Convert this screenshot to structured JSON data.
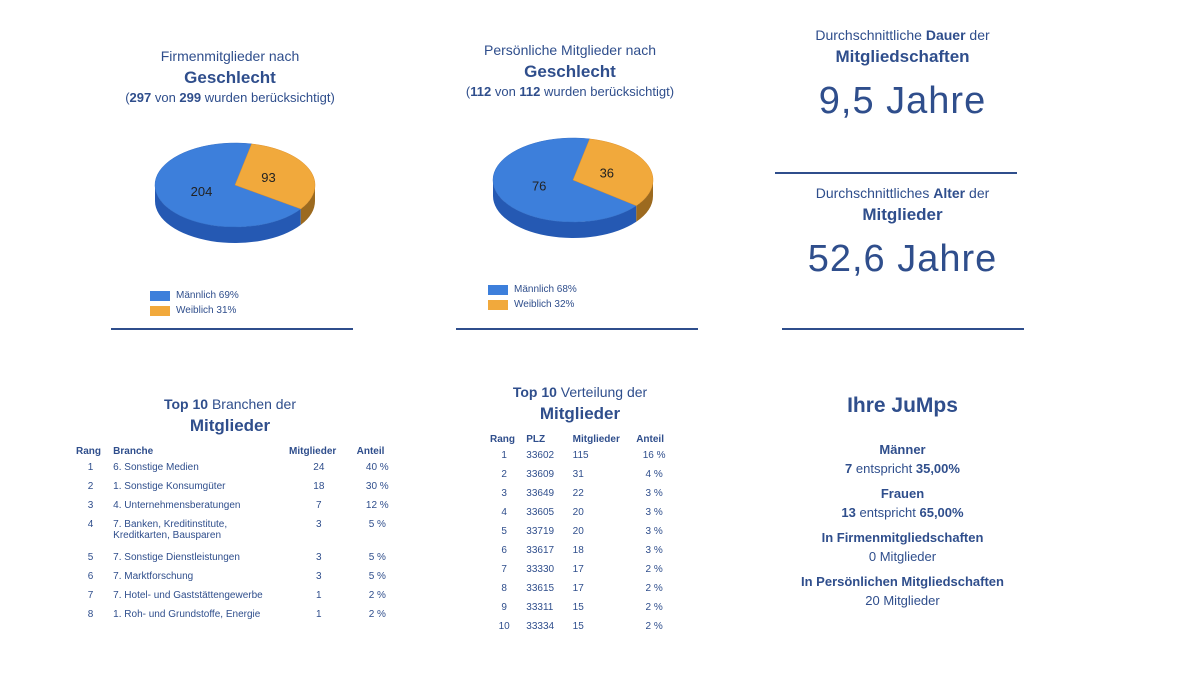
{
  "colors": {
    "text": "#2f4e8c",
    "male": "#3d7fdb",
    "female": "#f1a93c"
  },
  "firm_gender": {
    "title_line1": "Firmenmitglieder nach",
    "title_line2": "Geschlecht",
    "sub_count": "297",
    "sub_mid": " von ",
    "sub_total": "299",
    "sub_suffix": " wurden berücksichtigt)",
    "sub_prefix": "(",
    "legend": [
      {
        "label": "Männlich 69%"
      },
      {
        "label": "Weiblich 31%"
      }
    ]
  },
  "personal_gender": {
    "title_line1": "Persönliche Mitglieder nach",
    "title_line2": "Geschlecht",
    "sub_prefix": "(",
    "sub_count": "112",
    "sub_mid": " von ",
    "sub_total": "112",
    "sub_suffix": " wurden berücksichtigt)",
    "legend": [
      {
        "label": "Männlich 68%"
      },
      {
        "label": "Weiblich 32%"
      }
    ]
  },
  "chart_data": [
    {
      "type": "pie",
      "title": "Firmenmitglieder nach Geschlecht",
      "categories": [
        "Männlich",
        "Weiblich"
      ],
      "values": [
        204,
        93
      ],
      "data_labels": [
        "204",
        "93"
      ]
    },
    {
      "type": "pie",
      "title": "Persönliche Mitglieder nach Geschlecht",
      "categories": [
        "Männlich",
        "Weiblich"
      ],
      "values": [
        76,
        36
      ],
      "data_labels": [
        "76",
        "36"
      ]
    }
  ],
  "duration": {
    "prefix": "Durchschnittliche ",
    "bold": "Dauer",
    "suffix": " der",
    "line2": "Mitgliedschaften",
    "value": "9,5 Jahre"
  },
  "age": {
    "prefix": "Durchschnittliches ",
    "bold": "Alter",
    "suffix": " der",
    "line2": "Mitglieder",
    "value": "52,6 Jahre"
  },
  "branches": {
    "title_bold": "Top 10",
    "title_rest": " Branchen der",
    "title_line2": "Mitglieder",
    "headers": [
      "Rang",
      "Branche",
      "Mitglieder",
      "Anteil"
    ],
    "rows": [
      {
        "rank": "1",
        "name": "6. Sonstige Medien",
        "members": "24",
        "share": "40 %"
      },
      {
        "rank": "2",
        "name": "1. Sonstige Konsumgüter",
        "members": "18",
        "share": "30 %"
      },
      {
        "rank": "3",
        "name": "4. Unternehmensberatungen",
        "members": "7",
        "share": "12 %"
      },
      {
        "rank": "4",
        "name": "7. Banken, Kreditinstitute,",
        "name2": "Kreditkarten, Bausparen",
        "members": "3",
        "share": "5 %"
      },
      {
        "rank": "5",
        "name": "7. Sonstige Dienstleistungen",
        "members": "3",
        "share": "5 %"
      },
      {
        "rank": "6",
        "name": "7. Marktforschung",
        "members": "3",
        "share": "5 %"
      },
      {
        "rank": "7",
        "name": "7. Hotel- und Gaststättengewerbe",
        "members": "1",
        "share": "2 %"
      },
      {
        "rank": "8",
        "name": "1. Roh- und Grundstoffe, Energie",
        "members": "1",
        "share": "2 %"
      }
    ]
  },
  "distribution": {
    "title_bold": "Top 10",
    "title_rest": " Verteilung der",
    "title_line2": "Mitglieder",
    "headers": [
      "Rang",
      "PLZ",
      "Mitglieder",
      "Anteil"
    ],
    "rows": [
      {
        "rank": "1",
        "plz": "33602",
        "members": "115",
        "share": "16 %"
      },
      {
        "rank": "2",
        "plz": "33609",
        "members": "31",
        "share": "4 %"
      },
      {
        "rank": "3",
        "plz": "33649",
        "members": "22",
        "share": "3 %"
      },
      {
        "rank": "4",
        "plz": "33605",
        "members": "20",
        "share": "3 %"
      },
      {
        "rank": "5",
        "plz": "33719",
        "members": "20",
        "share": "3 %"
      },
      {
        "rank": "6",
        "plz": "33617",
        "members": "18",
        "share": "3 %"
      },
      {
        "rank": "7",
        "plz": "33330",
        "members": "17",
        "share": "2 %"
      },
      {
        "rank": "8",
        "plz": "33615",
        "members": "17",
        "share": "2 %"
      },
      {
        "rank": "9",
        "plz": "33311",
        "members": "15",
        "share": "2 %"
      },
      {
        "rank": "10",
        "plz": "33334",
        "members": "15",
        "share": "2 %"
      }
    ]
  },
  "jumps": {
    "title": "Ihre JuMps",
    "men_label": "Männer",
    "men_count": "7",
    "men_mid": " entspricht ",
    "men_pct": "35,00%",
    "women_label": "Frauen",
    "women_count": "13",
    "women_mid": " entspricht ",
    "women_pct": "65,00%",
    "firm_label": "In Firmenmitgliedschaften",
    "firm_value": "0 Mitglieder",
    "personal_label": "In Persönlichen Mitgliedschaften",
    "personal_value": "20 Mitglieder"
  }
}
